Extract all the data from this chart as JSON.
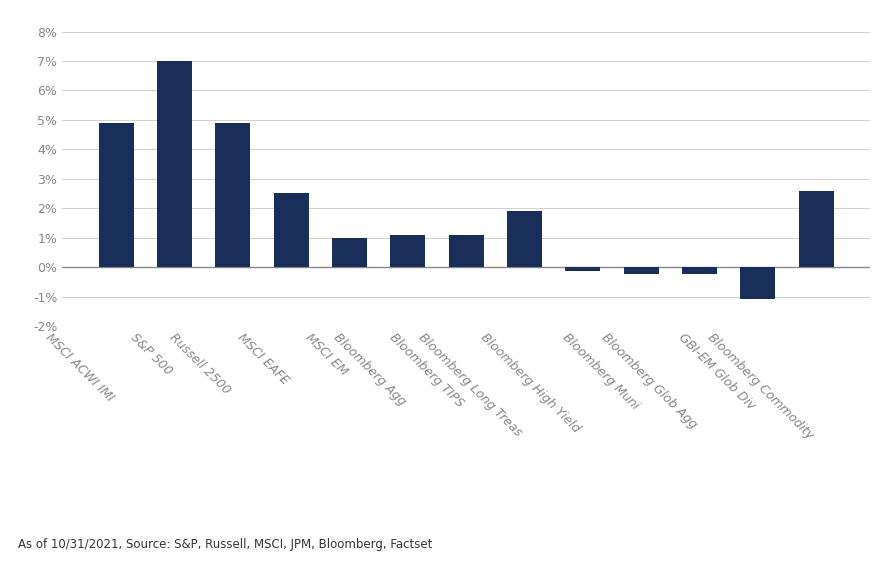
{
  "categories": [
    "MSCI ACWI IMI",
    "S&P 500",
    "Russell 2500",
    "MSCI EAFE",
    "MSCI EM",
    "Bloomberg Agg",
    "Bloomberg TIPS",
    "Bloomberg Long Treas",
    "Bloomberg High Yield",
    "Bloomberg Muni",
    "Bloomberg Glob Agg",
    "GBI-EM Glob Div",
    "Bloomberg Commodity"
  ],
  "values": [
    4.9,
    7.0,
    4.9,
    2.5,
    1.0,
    1.1,
    1.1,
    1.9,
    -0.15,
    -0.25,
    -0.25,
    -1.1,
    2.6
  ],
  "bar_color": "#1a2e5a",
  "background_color": "#ffffff",
  "ylim": [
    -2,
    8.5
  ],
  "yticks": [
    -2,
    -1,
    0,
    1,
    2,
    3,
    4,
    5,
    6,
    7,
    8
  ],
  "footnote": "As of 10/31/2021, Source: S&P, Russell, MSCI, JPM, Bloomberg, Factset",
  "grid_color": "#d0d0d0",
  "zero_line_color": "#888888",
  "tick_color": "#888888",
  "label_fontsize": 9,
  "ytick_fontsize": 9,
  "footnote_fontsize": 8.5
}
